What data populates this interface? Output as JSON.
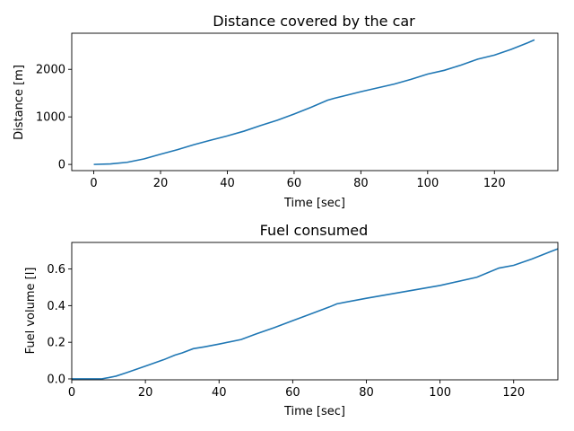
{
  "chart_data": [
    {
      "type": "line",
      "title": "Distance covered by the car",
      "xlabel": "Time [sec]",
      "ylabel": "Distance [m]",
      "xlim": [
        -6.6,
        139
      ],
      "ylim": [
        -130,
        2760
      ],
      "xticks": [
        0,
        20,
        40,
        60,
        80,
        100,
        120
      ],
      "yticks": [
        0,
        1000,
        2000
      ],
      "grid": false,
      "color": "#1f77b4",
      "x": [
        0,
        5,
        10,
        15,
        20,
        25,
        30,
        35,
        40,
        45,
        50,
        55,
        60,
        65,
        70,
        72,
        80,
        85,
        90,
        95,
        100,
        105,
        110,
        115,
        120,
        125,
        130,
        132
      ],
      "y": [
        0,
        10,
        45,
        115,
        215,
        310,
        415,
        510,
        600,
        700,
        820,
        930,
        1060,
        1200,
        1350,
        1390,
        1530,
        1610,
        1690,
        1790,
        1900,
        1980,
        2090,
        2215,
        2300,
        2420,
        2560,
        2620
      ]
    },
    {
      "type": "line",
      "title": "Fuel consumed",
      "xlabel": "Time [sec]",
      "ylabel": "Fuel volume [l]",
      "xlim": [
        0,
        132
      ],
      "ylim": [
        -0.005,
        0.745
      ],
      "xticks": [
        0,
        20,
        40,
        60,
        80,
        100,
        120
      ],
      "yticks": [
        0.0,
        0.2,
        0.4,
        0.6
      ],
      "grid": false,
      "color": "#1f77b4",
      "x": [
        0,
        8,
        10,
        12,
        15,
        20,
        25,
        28,
        30,
        33,
        36,
        40,
        46,
        50,
        55,
        60,
        65,
        70,
        72,
        80,
        90,
        100,
        110,
        116,
        120,
        125,
        130,
        132
      ],
      "y": [
        0,
        0,
        0.007,
        0.015,
        0.035,
        0.07,
        0.105,
        0.13,
        0.142,
        0.165,
        0.175,
        0.19,
        0.215,
        0.245,
        0.28,
        0.318,
        0.355,
        0.393,
        0.41,
        0.44,
        0.475,
        0.51,
        0.555,
        0.605,
        0.62,
        0.655,
        0.695,
        0.71
      ]
    }
  ]
}
